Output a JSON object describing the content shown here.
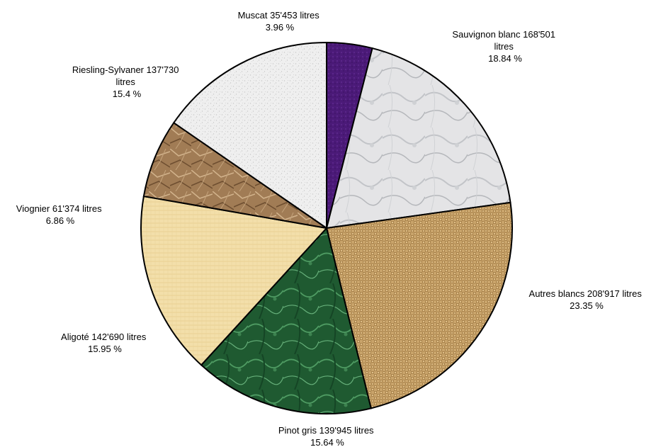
{
  "chart_data": {
    "type": "pie",
    "title": "",
    "legend": "none",
    "slices": [
      {
        "name": "Muscat",
        "value": 35453,
        "value_label": "35'453 litres",
        "percent_label": "3.96 %",
        "color": "#4b1a78",
        "texture": "purple"
      },
      {
        "name": "Sauvignon blanc",
        "value": 168501,
        "value_label": "168'501 litres",
        "percent_label": "18.84 %",
        "color": "#dcdcdc",
        "texture": "marble-white"
      },
      {
        "name": "Autres blancs",
        "value": 208917,
        "value_label": "208'917 litres",
        "percent_label": "23.35 %",
        "color": "#b8925a",
        "texture": "burlap"
      },
      {
        "name": "Pinot gris",
        "value": 139945,
        "value_label": "139'945 litres",
        "percent_label": "15.64 %",
        "color": "#2b6b3c",
        "texture": "marble-green"
      },
      {
        "name": "Aligoté",
        "value": 142690,
        "value_label": "142'690 litres",
        "percent_label": "15.95 %",
        "color": "#f1dca8",
        "texture": "paper-yellow"
      },
      {
        "name": "Viognier",
        "value": 61374,
        "value_label": "61'374 litres",
        "percent_label": "6.86 %",
        "color": "#9c7650",
        "texture": "crumpled-brown"
      },
      {
        "name": "Riesling-Sylvaner",
        "value": 137730,
        "value_label": "137'730 litres",
        "percent_label": "15.4 %",
        "color": "#ededed",
        "texture": "granite-white"
      }
    ]
  }
}
